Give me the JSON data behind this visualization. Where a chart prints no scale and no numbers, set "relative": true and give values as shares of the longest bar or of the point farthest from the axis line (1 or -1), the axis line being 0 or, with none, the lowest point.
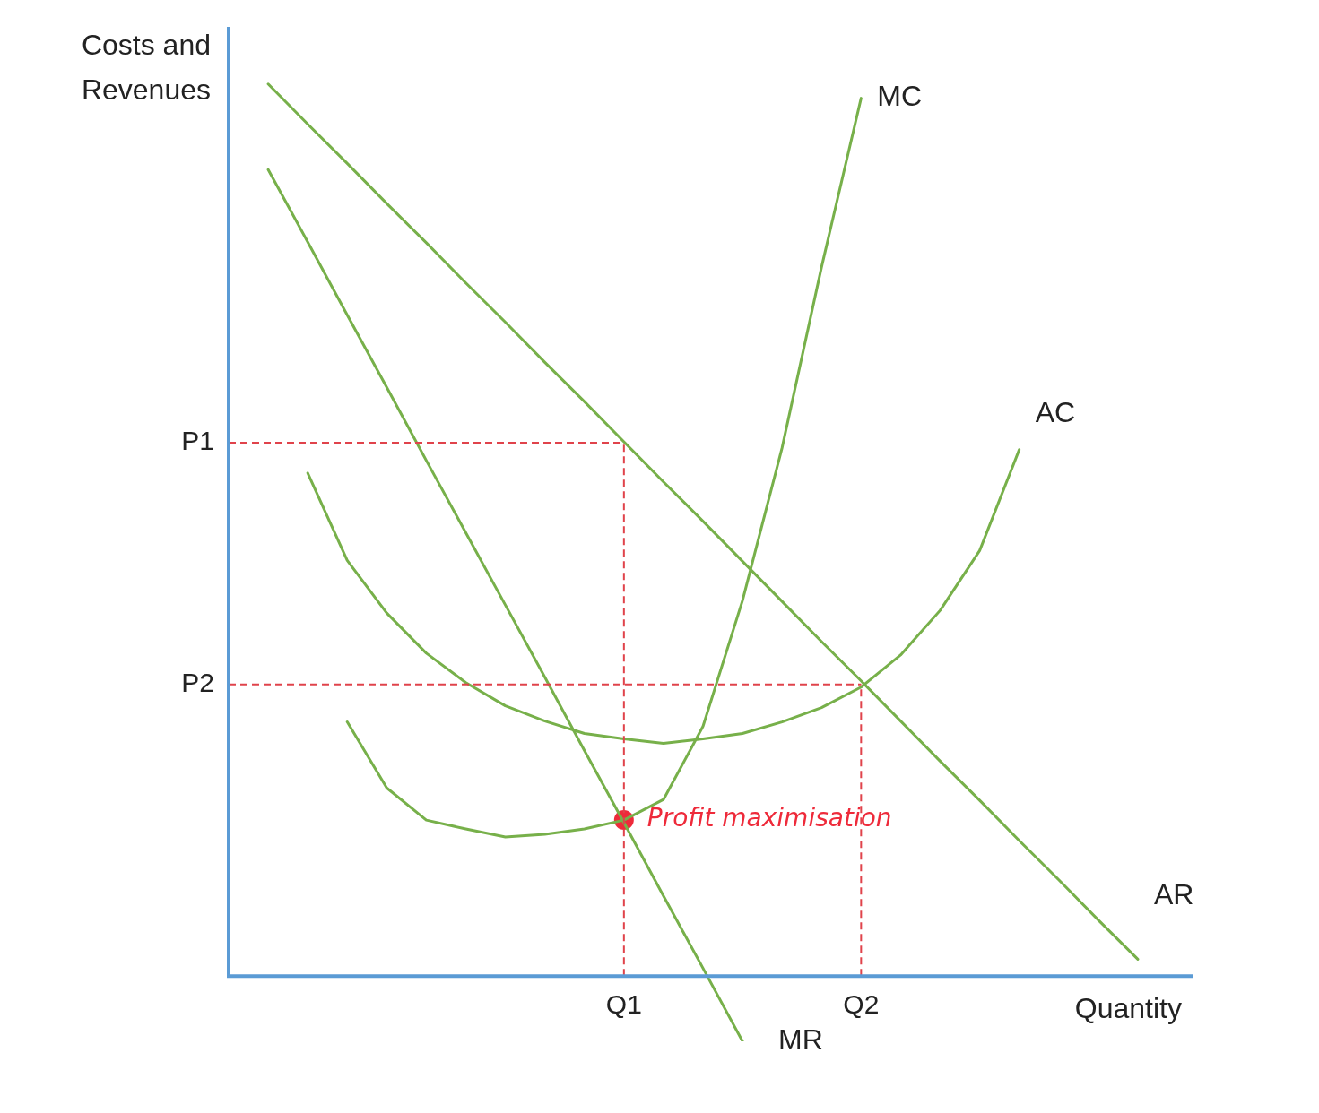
{
  "chart_data": {
    "type": "line",
    "relative": true,
    "xlabel": "Quantity",
    "ylabel": "Costs and Revenues",
    "legend": false,
    "marker": "none",
    "categories": [
      null,
      null,
      null,
      null,
      null,
      null,
      null,
      null,
      null,
      null,
      "Q1",
      null,
      null,
      null,
      null,
      null,
      "Q2",
      null,
      null,
      null,
      null,
      null,
      null,
      null,
      null
    ],
    "series": [
      {
        "name": "MC",
        "color": "#77b04a",
        "values": [
          null,
          null,
          null,
          0.285,
          0.211,
          0.175,
          0.165,
          0.156,
          0.159,
          0.165,
          0.175,
          0.198,
          0.28,
          0.421,
          0.592,
          0.795,
          0.984,
          null,
          null,
          null,
          null,
          null,
          null,
          null,
          null
        ]
      },
      {
        "name": "AC",
        "color": "#77b04a",
        "values": [
          null,
          null,
          0.564,
          0.466,
          0.407,
          0.362,
          0.329,
          0.303,
          0.286,
          0.272,
          0.266,
          0.261,
          0.266,
          0.272,
          0.285,
          0.301,
          0.324,
          0.36,
          0.41,
          0.477,
          0.59,
          null,
          null,
          null,
          null
        ]
      },
      {
        "name": "AR",
        "color": "#77b04a",
        "values": [
          null,
          1,
          0.955,
          0.911,
          0.866,
          0.822,
          0.777,
          0.733,
          0.688,
          0.644,
          0.599,
          0.554,
          0.51,
          0.465,
          0.42,
          0.375,
          0.331,
          0.286,
          0.241,
          0.197,
          0.152,
          0.108,
          0.063,
          0.019,
          null
        ]
      },
      {
        "name": "MR",
        "color": "#77b04a",
        "values": [
          null,
          0.904,
          0.823,
          0.741,
          0.66,
          0.578,
          0.497,
          0.416,
          0.335,
          0.253,
          0.172,
          0.09,
          0.009,
          -0.073,
          null,
          null,
          null,
          null,
          null,
          null,
          null,
          null,
          null,
          null,
          null
        ]
      },
      {
        "type": "scatter",
        "color": "#ee2a3a",
        "marker": "circle",
        "x": [
          "Q1"
        ],
        "values": [
          0.175
        ]
      }
    ],
    "ref_lines": [
      {
        "axis": "y",
        "value": 0.598,
        "label": "P1",
        "color": "#e0434b",
        "line_style": "dashed"
      },
      {
        "axis": "y",
        "value": 0.327,
        "label": "P2",
        "color": "#e0434b",
        "line_style": "dashed"
      },
      {
        "axis": "x",
        "value": "Q1",
        "color": "#e0434b",
        "line_style": "dashed"
      },
      {
        "axis": "x",
        "value": "Q2",
        "color": "#e0434b",
        "line_style": "dashed"
      }
    ],
    "annotations": [
      {
        "text": "Profit maximisation",
        "x": "Q1",
        "y": 0.175
      }
    ]
  }
}
